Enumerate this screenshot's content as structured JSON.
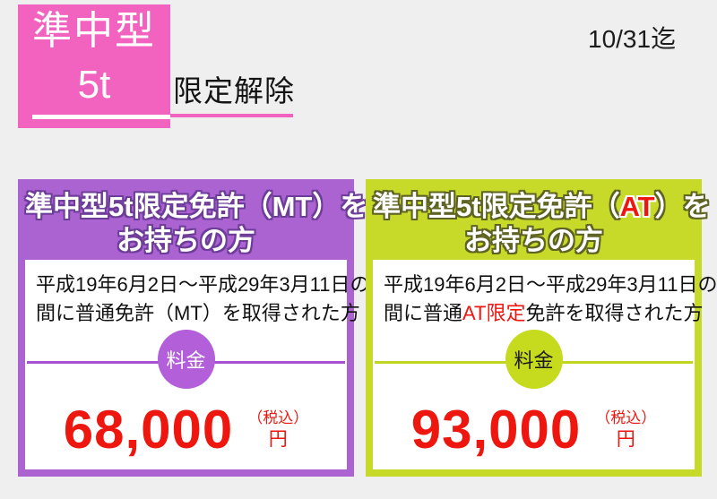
{
  "page": {
    "background": "#efefef",
    "deadline_note": "10/31迄"
  },
  "header": {
    "badge": {
      "line1": "準中型",
      "line2": "5t",
      "color": "#f263c0"
    },
    "title": "限定解除"
  },
  "cards": [
    {
      "title_pre": "準中型5t限定免許（",
      "title_variant": "MT",
      "title_post": "）を",
      "title_line2": "お持ちの方",
      "desc_line1": "平成19年6月2日～平成29年3月11日の",
      "desc_pre": "間に普通",
      "desc_highlight": "",
      "desc_post": "免許（MT）を取得された方",
      "fee_label": "料金",
      "price": "68,000",
      "tax_note": "（税込）",
      "currency": "円",
      "accent_color": "#ab63d2",
      "price_color": "#ed170f"
    },
    {
      "title_pre": "準中型5t限定免許（",
      "title_variant": "AT",
      "title_post": "）を",
      "title_line2": "お持ちの方",
      "desc_line1": "平成19年6月2日～平成29年3月11日の",
      "desc_pre": "間に普通",
      "desc_highlight": "AT限定",
      "desc_post": "免許を取得された方",
      "fee_label": "料金",
      "price": "93,000",
      "tax_note": "（税込）",
      "currency": "円",
      "accent_color": "#c8da29",
      "price_color": "#ed170f"
    }
  ]
}
